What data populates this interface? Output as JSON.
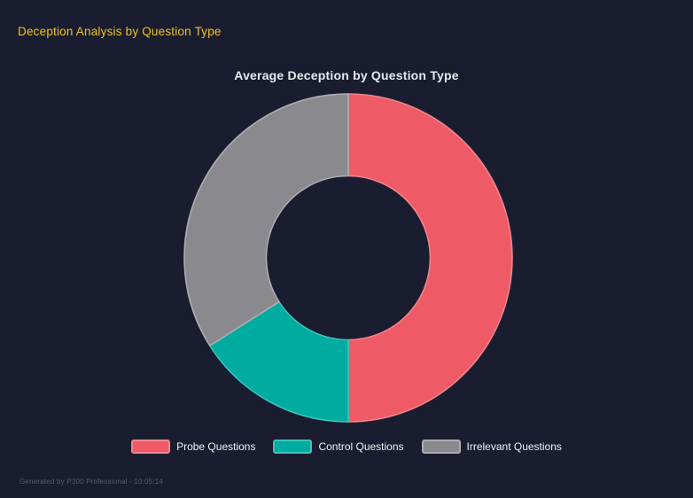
{
  "page": {
    "title": "Deception Analysis by Question Type",
    "title_color": "#f2c41d",
    "background_color": "#1a1d2f"
  },
  "chart_data": {
    "type": "pie",
    "variant": "donut",
    "title": "Average Deception by Question Type",
    "cutout_percent": 50,
    "legend_position": "bottom",
    "grid": false,
    "categories": [
      "Probe Questions",
      "Control Questions",
      "Irrelevant Questions"
    ],
    "values_percent_of_total": [
      50,
      16,
      34
    ],
    "segments": [
      {
        "label": "Probe Questions",
        "percent": 50,
        "color": "#ee5a66",
        "border_color": "#f4838c"
      },
      {
        "label": "Control Questions",
        "percent": 16,
        "color": "#00aba0",
        "border_color": "#3cc4ba"
      },
      {
        "label": "Irrelevant Questions",
        "percent": 34,
        "color": "#8a8a8e",
        "border_color": "#adadb1"
      }
    ]
  },
  "footer": {
    "text": "Generated by P300 Professional - 10:05:14"
  }
}
